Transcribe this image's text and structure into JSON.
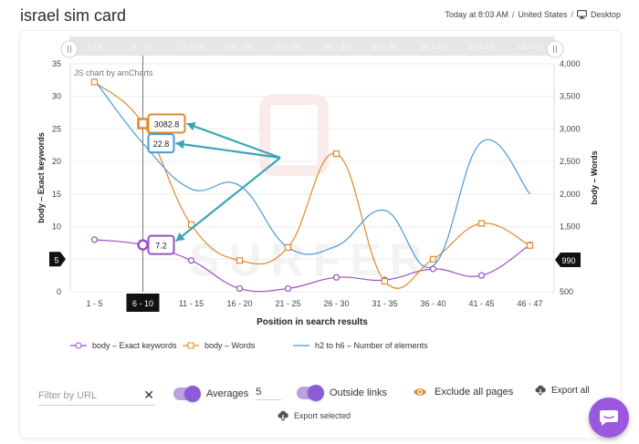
{
  "header": {
    "title": "israel sim card",
    "time": "Today at 8:03 AM",
    "country": "United States",
    "separator": "/",
    "device": "Desktop",
    "device_icon": "desktop-icon"
  },
  "chart": {
    "credit": "JS chart by amCharts",
    "watermark": "SURFER",
    "left_axis_marker": "5",
    "right_axis_marker": "990",
    "cursor_category": "6 - 10",
    "balloons": [
      "3082.8",
      "22.8",
      "7.2"
    ],
    "colors": {
      "exact_keywords": "#9b4fc9",
      "words": "#e08a2e",
      "headings": "#4a9ad8",
      "arrows": "#3aa5b8"
    }
  },
  "chart_data": {
    "type": "line",
    "categories": [
      "1 - 5",
      "6 - 10",
      "11 - 15",
      "16 - 20",
      "21 - 25",
      "26 - 30",
      "31 - 35",
      "36 - 40",
      "41 - 45",
      "46 - 47"
    ],
    "xlabel": "Position in search results",
    "ylabel_left": "body – Exact keywords",
    "ylabel_right": "body – Words",
    "ylim_left": [
      0,
      35
    ],
    "ylim_right": [
      500,
      4000
    ],
    "yticks_left": [
      "0",
      "5",
      "10",
      "15",
      "20",
      "25",
      "30",
      "35"
    ],
    "yticks_right": [
      "500",
      "1,000",
      "1,500",
      "2,000",
      "2,500",
      "3,000",
      "3,500",
      "4,000"
    ],
    "grid": true,
    "legend_position": "bottom",
    "series": [
      {
        "name": "body – Exact keywords",
        "axis": "left",
        "values": [
          8,
          7.2,
          4.8,
          0.5,
          0.5,
          2.2,
          1.8,
          3.5,
          2.5,
          7.2
        ]
      },
      {
        "name": "body – Words",
        "axis": "right",
        "values": [
          3720,
          3082.8,
          1530,
          980,
          1180,
          2620,
          660,
          1000,
          1550,
          1210
        ]
      },
      {
        "name": "h2 to h6 – Number of elements",
        "axis": "left",
        "values": [
          32.5,
          22.8,
          15.8,
          16.3,
          6.8,
          7.0,
          12.5,
          4.0,
          23.0,
          15.0
        ]
      }
    ]
  },
  "controls": {
    "filter_placeholder": "Filter by URL",
    "filter_value": "",
    "clear_label": "✕",
    "averages_label": "Averages",
    "averages_value": "5",
    "outside_links_label": "Outside links",
    "exclude_label": "Exclude all pages",
    "export_all_label": "Export all",
    "export_selected_label": "Export selected"
  }
}
